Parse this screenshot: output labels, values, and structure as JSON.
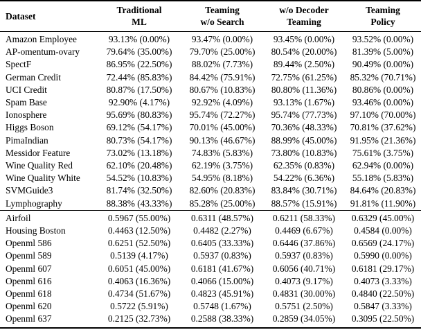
{
  "table": {
    "header": {
      "dataset_label": "Dataset",
      "metric_columns": [
        {
          "line1": "Traditional",
          "line2": "ML"
        },
        {
          "line1": "Teaming",
          "line2": "w/o Search"
        },
        {
          "line1": "w/o Decoder",
          "line2": "Teaming"
        },
        {
          "line1": "Teaming",
          "line2": "Policy"
        }
      ]
    },
    "sections": [
      {
        "name": "classification-datasets",
        "rows": [
          {
            "dataset": "Amazon Employee",
            "values": [
              "93.13% (0.00%)",
              "93.47% (0.00%)",
              "93.45% (0.00%)",
              "93.52% (0.00%)"
            ]
          },
          {
            "dataset": "AP-omentum-ovary",
            "values": [
              "79.64% (35.00%)",
              "79.70% (25.00%)",
              "80.54% (20.00%)",
              "81.39% (5.00%)"
            ]
          },
          {
            "dataset": "SpectF",
            "values": [
              "86.95% (22.50%)",
              "88.02% (7.73%)",
              "89.44% (2.50%)",
              "90.49% (0.00%)"
            ]
          },
          {
            "dataset": "German Credit",
            "values": [
              "72.44% (85.83%)",
              "84.42% (75.91%)",
              "72.75% (61.25%)",
              "85.32% (70.71%)"
            ]
          },
          {
            "dataset": "UCI Credit",
            "values": [
              "80.87% (17.50%)",
              "80.67% (10.83%)",
              "80.80% (11.36%)",
              "80.86% (0.00%)"
            ]
          },
          {
            "dataset": "Spam Base",
            "values": [
              "92.90% (4.17%)",
              "92.92% (4.09%)",
              "93.13% (1.67%)",
              "93.46% (0.00%)"
            ]
          },
          {
            "dataset": "Ionosphere",
            "values": [
              "95.69% (80.83%)",
              "95.74% (72.27%)",
              "95.74% (77.73%)",
              "97.10% (70.00%)"
            ]
          },
          {
            "dataset": "Higgs Boson",
            "values": [
              "69.12% (54.17%)",
              "70.01% (45.00%)",
              "70.36% (48.33%)",
              "70.81% (37.62%)"
            ]
          },
          {
            "dataset": "PimaIndian",
            "values": [
              "80.73% (54.17%)",
              "90.13% (46.67%)",
              "88.99% (45.00%)",
              "91.95% (21.36%)"
            ]
          },
          {
            "dataset": "Messidor Feature",
            "values": [
              "73.02% (13.18%)",
              "74.83% (5.83%)",
              "73.80% (10.83%)",
              "75.61% (3.75%)"
            ]
          },
          {
            "dataset": "Wine Quality Red",
            "values": [
              "62.10% (20.48%)",
              "62.19% (3.75%)",
              "62.35% (0.83%)",
              "62.94% (0.00%)"
            ]
          },
          {
            "dataset": "Wine Quality White",
            "values": [
              "54.52% (10.83%)",
              "54.95% (8.18%)",
              "54.22% (6.36%)",
              "55.18% (5.83%)"
            ]
          },
          {
            "dataset": "SVMGuide3",
            "values": [
              "81.74% (32.50%)",
              "82.60% (20.83%)",
              "83.84% (30.71%)",
              "84.64% (20.83%)"
            ]
          },
          {
            "dataset": "Lymphography",
            "values": [
              "88.38% (43.33%)",
              "85.28% (25.00%)",
              "88.57% (15.91%)",
              "91.81% (11.90%)"
            ]
          }
        ]
      },
      {
        "name": "regression-datasets",
        "rows": [
          {
            "dataset": "Airfoil",
            "values": [
              "0.5967 (55.00%)",
              "0.6311 (48.57%)",
              "0.6211 (58.33%)",
              "0.6329 (45.00%)"
            ]
          },
          {
            "dataset": "Housing Boston",
            "values": [
              "0.4463 (12.50%)",
              "0.4482 (2.27%)",
              "0.4469 (6.67%)",
              "0.4584 (0.00%)"
            ]
          },
          {
            "dataset": "Openml 586",
            "values": [
              "0.6251 (52.50%)",
              "0.6405 (33.33%)",
              "0.6446 (37.86%)",
              "0.6569 (24.17%)"
            ]
          },
          {
            "dataset": "Openml 589",
            "values": [
              "0.5139 (4.17%)",
              "0.5937 (0.83%)",
              "0.5937 (0.83%)",
              "0.5990 (0.00%)"
            ]
          },
          {
            "dataset": "Openml 607",
            "values": [
              "0.6051 (45.00%)",
              "0.6181 (41.67%)",
              "0.6056 (40.71%)",
              "0.6181 (29.17%)"
            ]
          },
          {
            "dataset": "Openml 616",
            "values": [
              "0.4063 (16.36%)",
              "0.4066 (15.00%)",
              "0.4073 (9.17%)",
              "0.4073 (3.33%)"
            ]
          },
          {
            "dataset": "Openml 618",
            "values": [
              "0.4734 (51.67%)",
              "0.4823 (45.91%)",
              "0.4831 (30.00%)",
              "0.4840 (22.50%)"
            ]
          },
          {
            "dataset": "Openml 620",
            "values": [
              "0.5722 (5.91%)",
              "0.5748 (1.67%)",
              "0.5751 (2.50%)",
              "0.5847 (3.33%)"
            ]
          },
          {
            "dataset": "Openml 637",
            "values": [
              "0.2125 (32.73%)",
              "0.2588 (38.33%)",
              "0.2859 (34.05%)",
              "0.3095 (22.50%)"
            ]
          }
        ]
      }
    ]
  }
}
